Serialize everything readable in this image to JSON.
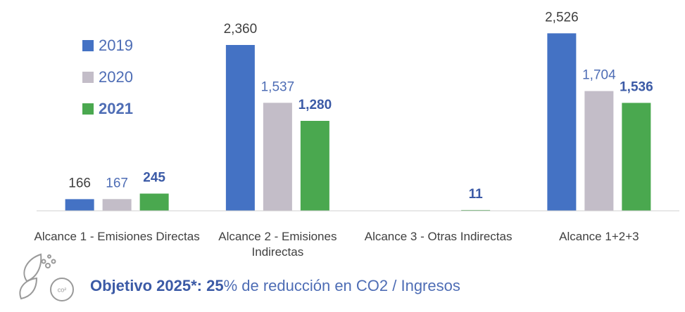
{
  "chart_data": {
    "type": "bar",
    "categories": [
      "Alcance 1 - Emisiones Directas",
      "Alcance 2 - Emisiones Indirectas",
      "Alcance 3 - Otras Indirectas",
      "Alcance 1+2+3"
    ],
    "series": [
      {
        "name": "2019",
        "color": "#4472c4",
        "values": [
          166,
          2360,
          null,
          2526
        ],
        "value_labels": [
          "166",
          "2,360",
          null,
          "2,526"
        ]
      },
      {
        "name": "2020",
        "color": "#c3bdc8",
        "values": [
          167,
          1537,
          null,
          1704
        ],
        "value_labels": [
          "167",
          "1,537",
          null,
          "1,704"
        ]
      },
      {
        "name": "2021",
        "color": "#4aa84f",
        "values": [
          245,
          1280,
          11,
          1536
        ],
        "value_labels": [
          "245",
          "1,280",
          "11",
          "1,536"
        ]
      }
    ],
    "ylim": [
      0,
      2800
    ],
    "legend": "top-left"
  },
  "footer": {
    "label": "Objetivo 2025*:",
    "value": "25",
    "text": "% de reducción en CO2 / Ingresos"
  }
}
